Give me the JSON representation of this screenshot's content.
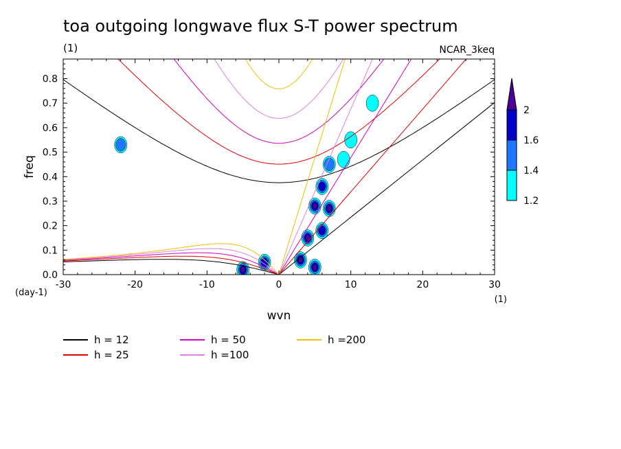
{
  "chart_data": {
    "type": "contour",
    "title": "toa outgoing longwave flux S-T power spectrum",
    "subtitle_left": "(1)",
    "subtitle_right": "NCAR_3keq",
    "xlabel": "wvn",
    "ylabel": "freq",
    "x_unit": "(1)",
    "y_unit": "(day-1)",
    "xlim": [
      -30,
      30
    ],
    "ylim": [
      0,
      0.88
    ],
    "xticks": [
      -30,
      -20,
      -10,
      0,
      10,
      20,
      30
    ],
    "yticks": [
      0.0,
      0.1,
      0.2,
      0.3,
      0.4,
      0.5,
      0.6,
      0.7,
      0.8
    ],
    "contour_levels": [
      1.2,
      1.4,
      1.6,
      2
    ],
    "colorbar": {
      "labels": [
        "1.2",
        "1.4",
        "1.6",
        "2"
      ],
      "colors": [
        "#00ffff",
        "#1e78ff",
        "#0000c8",
        "#4b0096"
      ]
    },
    "dispersion_curves": [
      {
        "name": "h = 12",
        "h": 12,
        "color": "#000000"
      },
      {
        "name": "h = 25",
        "h": 25,
        "color": "#e00000"
      },
      {
        "name": "h = 50",
        "h": 50,
        "color": "#d000c0"
      },
      {
        "name": "h =100",
        "h": 100,
        "color": "#e080e0"
      },
      {
        "name": "h =200",
        "h": 200,
        "color": "#f0c000"
      }
    ],
    "significant_regions": [
      {
        "x": -5,
        "y": 0.02,
        "level": 2
      },
      {
        "x": -2,
        "y": 0.05,
        "level": 1.6
      },
      {
        "x": 3,
        "y": 0.06,
        "level": 2
      },
      {
        "x": 5,
        "y": 0.03,
        "level": 2
      },
      {
        "x": 4,
        "y": 0.15,
        "level": 2
      },
      {
        "x": 6,
        "y": 0.18,
        "level": 1.6
      },
      {
        "x": 5,
        "y": 0.28,
        "level": 2
      },
      {
        "x": 7,
        "y": 0.27,
        "level": 2
      },
      {
        "x": 6,
        "y": 0.36,
        "level": 1.6
      },
      {
        "x": 7,
        "y": 0.45,
        "level": 1.4
      },
      {
        "x": 9,
        "y": 0.47,
        "level": 1.2
      },
      {
        "x": 10,
        "y": 0.55,
        "level": 1.2
      },
      {
        "x": 13,
        "y": 0.7,
        "level": 1.2
      },
      {
        "x": -22,
        "y": 0.53,
        "level": 1.4
      }
    ]
  }
}
